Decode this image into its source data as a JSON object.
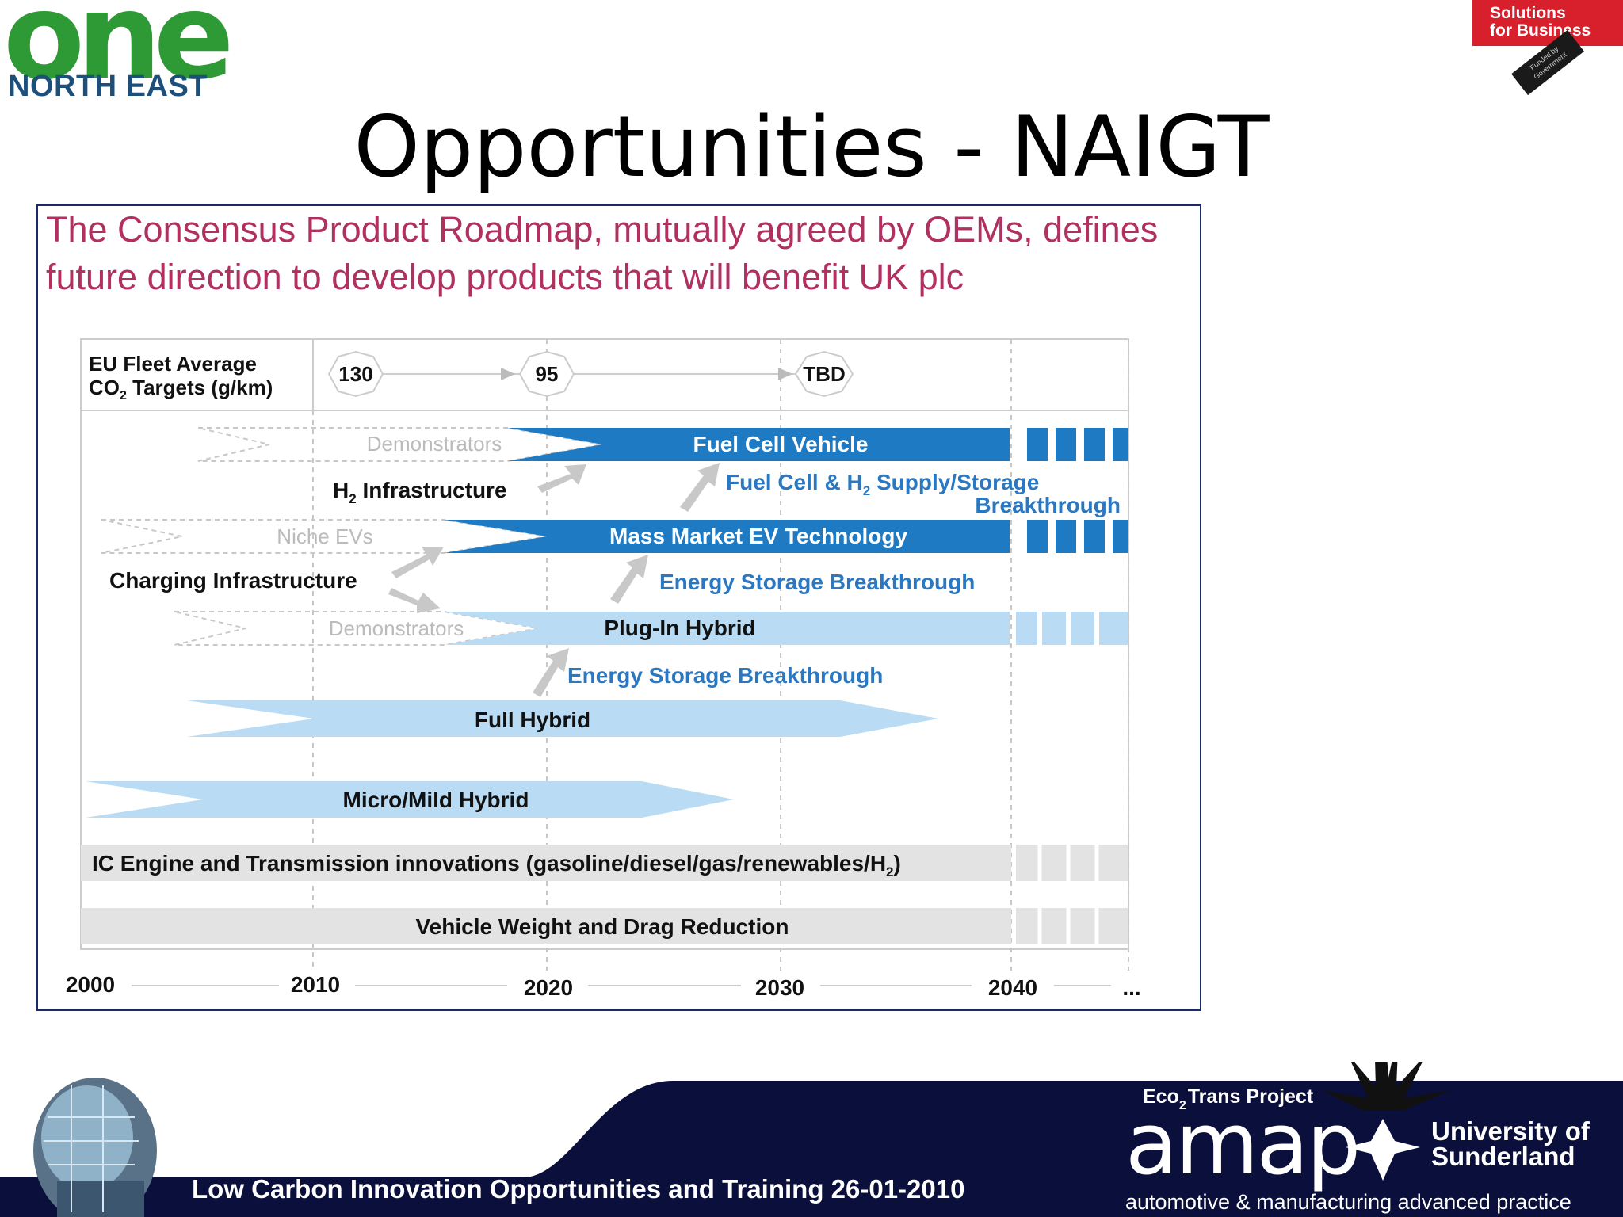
{
  "header": {
    "logo_main": "one",
    "logo_sub": "NORTH EAST",
    "badge_text_1": "Solutions",
    "badge_text_2": "for Business",
    "badge_tag": "Funded by Government"
  },
  "slide": {
    "title": "Opportunities - NAIGT",
    "subtitle": "The Consensus Product Roadmap, mutually agreed by OEMs, defines future direction to develop products that will benefit UK plc"
  },
  "roadmap": {
    "targets_label_1": "EU Fleet Average",
    "targets_label_2": "CO",
    "targets_label_2b": "2",
    "targets_label_2c": " Targets (g/km)",
    "targets": [
      "130",
      "95",
      "TBD"
    ],
    "rows": {
      "fuel_cell_pre": "Demonstrators",
      "fuel_cell": "Fuel Cell Vehicle",
      "h2_infra": "Infrastructure",
      "h2_prefix": "H",
      "fc_supply_1": "Fuel Cell & H",
      "fc_supply_1b": " Supply/Storage",
      "fc_supply_2": "Breakthrough",
      "ev_pre": "Niche EVs",
      "ev": "Mass Market EV Technology",
      "charging": "Charging Infrastructure",
      "energy_storage_1": "Energy Storage Breakthrough",
      "phev_pre": "Demonstrators",
      "phev": "Plug-In Hybrid",
      "energy_storage_2": "Energy Storage Breakthrough",
      "full_hybrid": "Full Hybrid",
      "micro_hybrid": "Micro/Mild Hybrid",
      "ic_engine": "IC Engine and Transmission innovations (gasoline/diesel/gas/renewables/H",
      "ic_engine_end": ")",
      "weight": "Vehicle Weight and Drag Reduction"
    },
    "years": [
      "2000",
      "2010",
      "2020",
      "2030",
      "2040",
      "..."
    ]
  },
  "footer": {
    "text": "Low Carbon Innovation Opportunities and Training 26-01-2010",
    "project_1": "Eco",
    "project_2": "2",
    "project_3": "Trans Project",
    "amap": "amap",
    "amap_sub": "automotive & manufacturing advanced practice",
    "uni_1": "University of",
    "uni_2": "Sunderland"
  },
  "colors": {
    "dark_blue": "#1f7ac4",
    "light_blue": "#b9dcf4",
    "subtitle": "#b03060",
    "footer": "#0b0f3b"
  }
}
